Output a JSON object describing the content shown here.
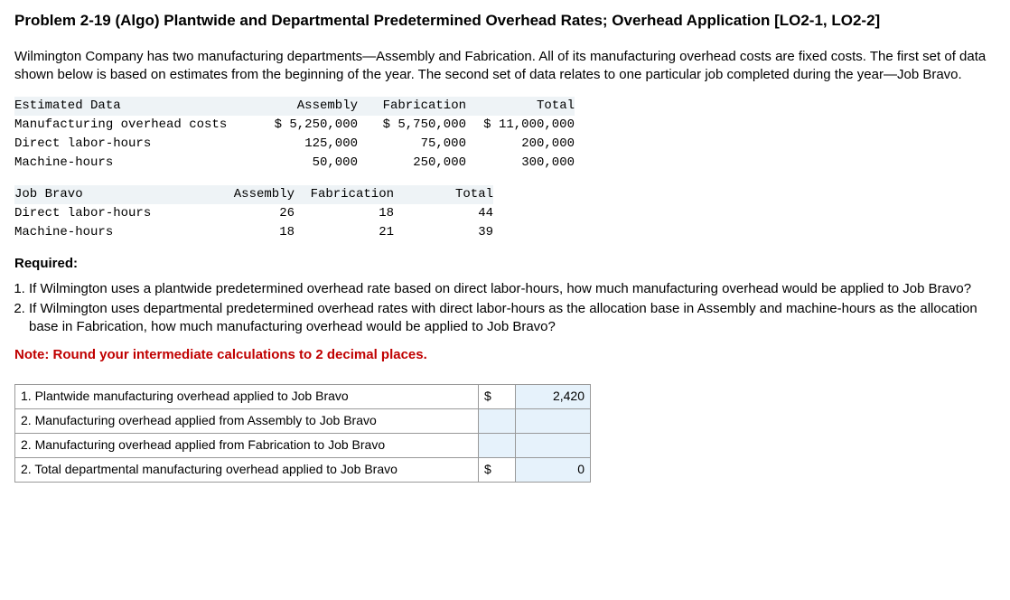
{
  "title": "Problem 2-19 (Algo) Plantwide and Departmental Predetermined Overhead Rates; Overhead Application [LO2-1, LO2-2]",
  "intro": "Wilmington Company has two manufacturing departments—Assembly and Fabrication. All of its manufacturing overhead costs are fixed costs. The first set of data shown below is based on estimates from the beginning of the year. The second set of data relates to one particular job completed during the year—Job Bravo.",
  "est": {
    "title": "Estimated Data",
    "h1": "Assembly",
    "h2": "Fabrication",
    "h3": "Total",
    "r1": {
      "label": "Manufacturing overhead costs",
      "a": "$ 5,250,000",
      "b": "$ 5,750,000",
      "c": "$ 11,000,000"
    },
    "r2": {
      "label": "Direct labor-hours",
      "a": "125,000",
      "b": "75,000",
      "c": "200,000"
    },
    "r3": {
      "label": "Machine-hours",
      "a": "50,000",
      "b": "250,000",
      "c": "300,000"
    }
  },
  "job": {
    "title": "Job Bravo",
    "h1": "Assembly",
    "h2": "Fabrication",
    "h3": "Total",
    "r1": {
      "label": "Direct labor-hours",
      "a": "26",
      "b": "18",
      "c": "44"
    },
    "r2": {
      "label": "Machine-hours",
      "a": "18",
      "b": "21",
      "c": "39"
    }
  },
  "req_h": "Required:",
  "req1": "If Wilmington uses a plantwide predetermined overhead rate based on direct labor-hours, how much manufacturing overhead would be applied to Job Bravo?",
  "req2": "If Wilmington uses departmental predetermined overhead rates with direct labor-hours as the allocation base in Assembly and machine-hours as the allocation base in Fabrication, how much manufacturing overhead would be applied to Job Bravo?",
  "note": "Note: Round your intermediate calculations to 2 decimal places.",
  "ans": {
    "r1": {
      "label": "1. Plantwide manufacturing overhead applied to Job Bravo",
      "cur": "$",
      "val": "2,420"
    },
    "r2": {
      "label": "2. Manufacturing overhead applied from Assembly to Job Bravo",
      "cur": "",
      "val": ""
    },
    "r3": {
      "label": "2. Manufacturing overhead applied from Fabrication to Job Bravo",
      "cur": "",
      "val": ""
    },
    "r4": {
      "label": "2. Total departmental manufacturing overhead applied to Job Bravo",
      "cur": "$",
      "val": "0"
    }
  }
}
